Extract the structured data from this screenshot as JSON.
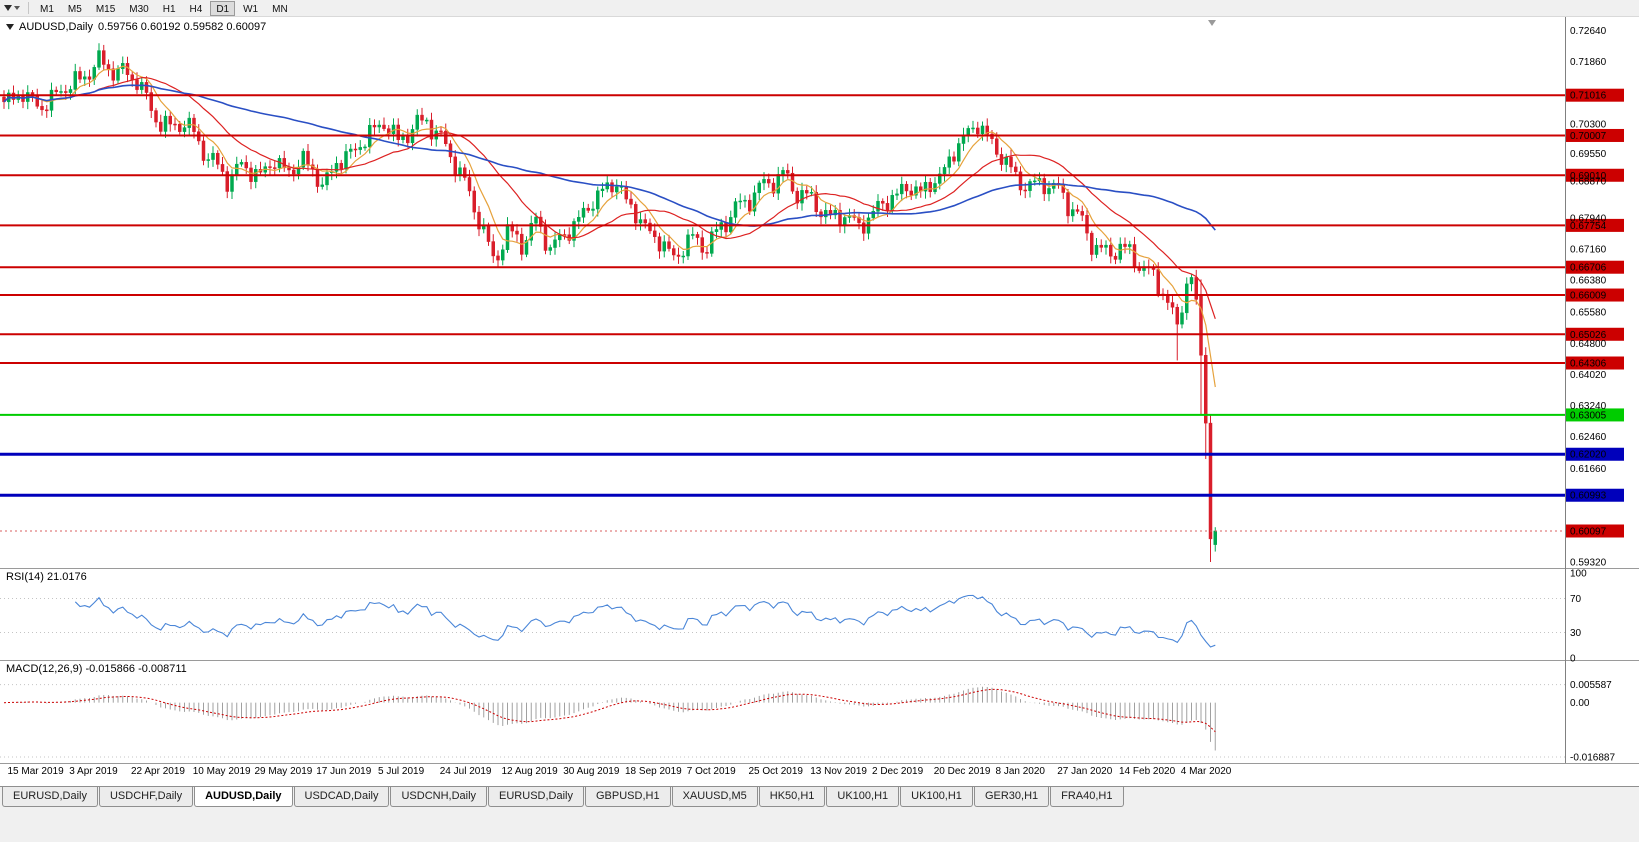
{
  "toolbar": {
    "timeframes": [
      {
        "label": "M1",
        "active": false
      },
      {
        "label": "M5",
        "active": false
      },
      {
        "label": "M15",
        "active": false
      },
      {
        "label": "M30",
        "active": false
      },
      {
        "label": "H1",
        "active": false
      },
      {
        "label": "H4",
        "active": false
      },
      {
        "label": "D1",
        "active": true
      },
      {
        "label": "W1",
        "active": false
      },
      {
        "label": "MN",
        "active": false
      }
    ]
  },
  "chart": {
    "symbol": "AUDUSD,Daily",
    "ohlc_line": "0.59756 0.60192 0.59582 0.60097",
    "y_axis_ticks": [
      0.7264,
      0.7186,
      0.703,
      0.6955,
      0.6887,
      0.6794,
      0.6716,
      0.6638,
      0.6558,
      0.648,
      0.6402,
      0.6324,
      0.6246,
      0.6166,
      0.5932
    ]
  },
  "rsi": {
    "label": "RSI(14) 21.0176",
    "period": 14,
    "ticks": [
      100,
      70,
      30,
      0
    ],
    "level_lines": [
      70,
      30
    ],
    "line_color": "#4a86d8"
  },
  "macd": {
    "label": "MACD(12,26,9) -0.015866 -0.008711",
    "ticks": [
      "0.005587",
      "0.00",
      "-0.016887"
    ],
    "histogram_color": "#a0a0a0",
    "signal_color": "#cc0000",
    "vlim": [
      -0.0178,
      0.012
    ]
  },
  "chart_data": {
    "type": "candlestick",
    "title": "AUDUSD,Daily",
    "symbol": "AUDUSD",
    "timeframe": "Daily",
    "last_ohlc": {
      "open": 0.59756,
      "high": 0.60192,
      "low": 0.59582,
      "close": 0.60097
    },
    "ylim": [
      0.5922,
      0.729
    ],
    "num_bars": 256,
    "bar_spacing_px": 4.75,
    "colors": {
      "up": "#00a94f",
      "down": "#d91e2b",
      "ma_fast": "#e6a23c",
      "ma_medium": "#dd2222",
      "ma_slow": "#2a4fc4",
      "resistance": "#cc0000",
      "support_green": "#00cc00",
      "support_blue": "#0000bb",
      "bid": "#cc0000"
    },
    "moving_averages": [
      {
        "name": "fast",
        "period": 7,
        "color": "#e6a23c"
      },
      {
        "name": "medium",
        "period": 20,
        "color": "#dd2222"
      },
      {
        "name": "slow",
        "period": 60,
        "color": "#2a4fc4"
      }
    ],
    "close_keypoints": [
      [
        0,
        0.7085
      ],
      [
        4,
        0.7105
      ],
      [
        8,
        0.707
      ],
      [
        12,
        0.7115
      ],
      [
        16,
        0.714
      ],
      [
        20,
        0.7185
      ],
      [
        24,
        0.716
      ],
      [
        28,
        0.7145
      ],
      [
        31,
        0.706
      ],
      [
        35,
        0.7015
      ],
      [
        38,
        0.704
      ],
      [
        41,
        0.698
      ],
      [
        44,
        0.6935
      ],
      [
        47,
        0.689
      ],
      [
        50,
        0.6925
      ],
      [
        54,
        0.69
      ],
      [
        57,
        0.694
      ],
      [
        60,
        0.6905
      ],
      [
        63,
        0.6945
      ],
      [
        67,
        0.6875
      ],
      [
        70,
        0.693
      ],
      [
        74,
        0.6965
      ],
      [
        77,
        0.7005
      ],
      [
        80,
        0.7035
      ],
      [
        83,
        0.6985
      ],
      [
        86,
        0.702
      ],
      [
        89,
        0.704
      ],
      [
        92,
        0.699
      ],
      [
        95,
        0.6935
      ],
      [
        98,
        0.685
      ],
      [
        100,
        0.6795
      ],
      [
        103,
        0.6685
      ],
      [
        106,
        0.676
      ],
      [
        109,
        0.673
      ],
      [
        112,
        0.6785
      ],
      [
        115,
        0.672
      ],
      [
        118,
        0.675
      ],
      [
        122,
        0.6805
      ],
      [
        126,
        0.6865
      ],
      [
        129,
        0.688
      ],
      [
        132,
        0.682
      ],
      [
        135,
        0.677
      ],
      [
        138,
        0.6735
      ],
      [
        141,
        0.6695
      ],
      [
        145,
        0.6745
      ],
      [
        148,
        0.672
      ],
      [
        151,
        0.6775
      ],
      [
        154,
        0.6815
      ],
      [
        158,
        0.6855
      ],
      [
        161,
        0.6885
      ],
      [
        164,
        0.69
      ],
      [
        167,
        0.686
      ],
      [
        171,
        0.683
      ],
      [
        174,
        0.679
      ],
      [
        177,
        0.6805
      ],
      [
        180,
        0.677
      ],
      [
        184,
        0.682
      ],
      [
        187,
        0.6845
      ],
      [
        190,
        0.687
      ],
      [
        193,
        0.686
      ],
      [
        197,
        0.6895
      ],
      [
        200,
        0.696
      ],
      [
        203,
        0.701
      ],
      [
        205,
        0.703
      ],
      [
        208,
        0.698
      ],
      [
        210,
        0.695
      ],
      [
        213,
        0.6895
      ],
      [
        216,
        0.687
      ],
      [
        219,
        0.6885
      ],
      [
        223,
        0.685
      ],
      [
        226,
        0.68
      ],
      [
        229,
        0.6735
      ],
      [
        232,
        0.67
      ],
      [
        235,
        0.6725
      ],
      [
        238,
        0.669
      ],
      [
        241,
        0.666
      ],
      [
        244,
        0.661
      ],
      [
        246,
        0.6555
      ],
      [
        247,
        0.6515
      ],
      [
        248,
        0.658
      ],
      [
        249,
        0.663
      ],
      [
        250,
        0.6645
      ],
      [
        251,
        0.659
      ],
      [
        252,
        0.645
      ],
      [
        253,
        0.628
      ],
      [
        254,
        0.599
      ],
      [
        255,
        0.60097
      ]
    ],
    "overrides": {
      "247": {
        "l": 0.6437
      },
      "252": {
        "o": 0.66,
        "h": 0.664,
        "l": 0.6302,
        "c": 0.645
      },
      "253": {
        "o": 0.645,
        "h": 0.647,
        "l": 0.619,
        "c": 0.628
      },
      "254": {
        "o": 0.628,
        "h": 0.63,
        "l": 0.5932,
        "c": 0.599
      },
      "255": {
        "o": 0.59756,
        "h": 0.60192,
        "l": 0.59582,
        "c": 0.60097
      }
    },
    "horizontal_lines": [
      {
        "value": 0.71016,
        "label": "0.71016",
        "color": "#cc0000",
        "width": 2
      },
      {
        "value": 0.70007,
        "label": "0.70007",
        "color": "#cc0000",
        "width": 2
      },
      {
        "value": 0.6901,
        "label": "0.69010",
        "color": "#cc0000",
        "width": 2
      },
      {
        "value": 0.67754,
        "label": "0.67754",
        "color": "#cc0000",
        "width": 2
      },
      {
        "value": 0.66706,
        "label": "0.66706",
        "color": "#cc0000",
        "width": 2
      },
      {
        "value": 0.66009,
        "label": "0.66009",
        "color": "#cc0000",
        "width": 2
      },
      {
        "value": 0.65026,
        "label": "0.65026",
        "color": "#cc0000",
        "width": 2
      },
      {
        "value": 0.64306,
        "label": "0.64306",
        "color": "#cc0000",
        "width": 2
      },
      {
        "value": 0.63005,
        "label": "0.63005",
        "color": "#00cc00",
        "width": 2
      },
      {
        "value": 0.6202,
        "label": "0.62020",
        "color": "#0000bb",
        "width": 3
      },
      {
        "value": 0.60993,
        "label": "0.60993",
        "color": "#0000bb",
        "width": 3
      }
    ],
    "current_price_line": {
      "value": 0.60097,
      "label": "0.60097",
      "color": "#cc0000"
    },
    "x_labels": [
      "15 Mar 2019",
      "3 Apr 2019",
      "22 Apr 2019",
      "10 May 2019",
      "29 May 2019",
      "17 Jun 2019",
      "5 Jul 2019",
      "24 Jul 2019",
      "12 Aug 2019",
      "30 Aug 2019",
      "18 Sep 2019",
      "7 Oct 2019",
      "25 Oct 2019",
      "13 Nov 2019",
      "2 Dec 2019",
      "20 Dec 2019",
      "8 Jan 2020",
      "27 Jan 2020",
      "14 Feb 2020",
      "4 Mar 2020"
    ],
    "x_label_bars": [
      2,
      15,
      28,
      41,
      54,
      67,
      80,
      93,
      106,
      119,
      132,
      145,
      158,
      171,
      184,
      197,
      210,
      223,
      236,
      249
    ]
  },
  "tabs": {
    "active_index": 2,
    "items": [
      "EURUSD,Daily",
      "USDCHF,Daily",
      "AUDUSD,Daily",
      "USDCAD,Daily",
      "USDCNH,Daily",
      "EURUSD,Daily",
      "GBPUSD,H1",
      "XAUUSD,M5",
      "HK50,H1",
      "UK100,H1",
      "UK100,H1",
      "GER30,H1",
      "FRA40,H1"
    ]
  }
}
